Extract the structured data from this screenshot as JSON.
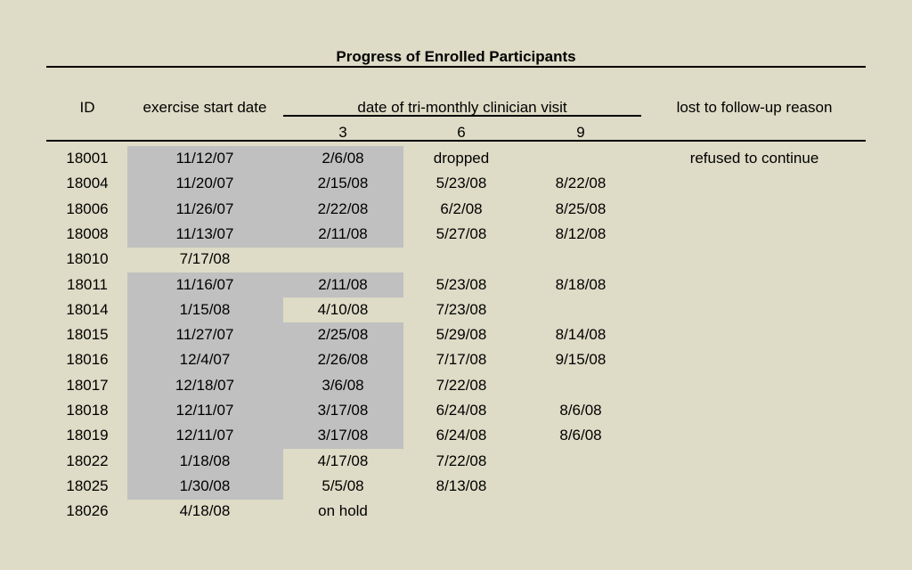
{
  "title": "Progress of Enrolled Participants",
  "headers": {
    "id": "ID",
    "start": "exercise start date",
    "visit_group": "date of tri-monthly clinician visit",
    "reason": "lost to follow-up reason",
    "visit_months": [
      "3",
      "6",
      "9"
    ]
  },
  "shading_color": "#c0c0c0",
  "background_color": "#dedbc6",
  "rows": [
    {
      "id": "18001",
      "start": "11/12/07",
      "v3": "2/6/08",
      "v6": "dropped",
      "v9": "",
      "reason": "refused to continue",
      "shade_start": true,
      "shade_v3": true
    },
    {
      "id": "18004",
      "start": "11/20/07",
      "v3": "2/15/08",
      "v6": "5/23/08",
      "v9": "8/22/08",
      "reason": "",
      "shade_start": true,
      "shade_v3": true
    },
    {
      "id": "18006",
      "start": "11/26/07",
      "v3": "2/22/08",
      "v6": "6/2/08",
      "v9": "8/25/08",
      "reason": "",
      "shade_start": true,
      "shade_v3": true
    },
    {
      "id": "18008",
      "start": "11/13/07",
      "v3": "2/11/08",
      "v6": "5/27/08",
      "v9": "8/12/08",
      "reason": "",
      "shade_start": true,
      "shade_v3": true
    },
    {
      "id": "18010",
      "start": "7/17/08",
      "v3": "",
      "v6": "",
      "v9": "",
      "reason": "",
      "shade_start": false,
      "shade_v3": false
    },
    {
      "id": "18011",
      "start": "11/16/07",
      "v3": "2/11/08",
      "v6": "5/23/08",
      "v9": "8/18/08",
      "reason": "",
      "shade_start": true,
      "shade_v3": true
    },
    {
      "id": "18014",
      "start": "1/15/08",
      "v3": "4/10/08",
      "v6": "7/23/08",
      "v9": "",
      "reason": "",
      "shade_start": true,
      "shade_v3": false
    },
    {
      "id": "18015",
      "start": "11/27/07",
      "v3": "2/25/08",
      "v6": "5/29/08",
      "v9": "8/14/08",
      "reason": "",
      "shade_start": true,
      "shade_v3": true
    },
    {
      "id": "18016",
      "start": "12/4/07",
      "v3": "2/26/08",
      "v6": "7/17/08",
      "v9": "9/15/08",
      "reason": "",
      "shade_start": true,
      "shade_v3": true
    },
    {
      "id": "18017",
      "start": "12/18/07",
      "v3": "3/6/08",
      "v6": "7/22/08",
      "v9": "",
      "reason": "",
      "shade_start": true,
      "shade_v3": true
    },
    {
      "id": "18018",
      "start": "12/11/07",
      "v3": "3/17/08",
      "v6": "6/24/08",
      "v9": "8/6/08",
      "reason": "",
      "shade_start": true,
      "shade_v3": true
    },
    {
      "id": "18019",
      "start": "12/11/07",
      "v3": "3/17/08",
      "v6": "6/24/08",
      "v9": "8/6/08",
      "reason": "",
      "shade_start": true,
      "shade_v3": true
    },
    {
      "id": "18022",
      "start": "1/18/08",
      "v3": "4/17/08",
      "v6": "7/22/08",
      "v9": "",
      "reason": "",
      "shade_start": true,
      "shade_v3": false
    },
    {
      "id": "18025",
      "start": "1/30/08",
      "v3": "5/5/08",
      "v6": "8/13/08",
      "v9": "",
      "reason": "",
      "shade_start": true,
      "shade_v3": false
    },
    {
      "id": "18026",
      "start": "4/18/08",
      "v3": "on hold",
      "v6": "",
      "v9": "",
      "reason": "",
      "shade_start": false,
      "shade_v3": false
    }
  ]
}
